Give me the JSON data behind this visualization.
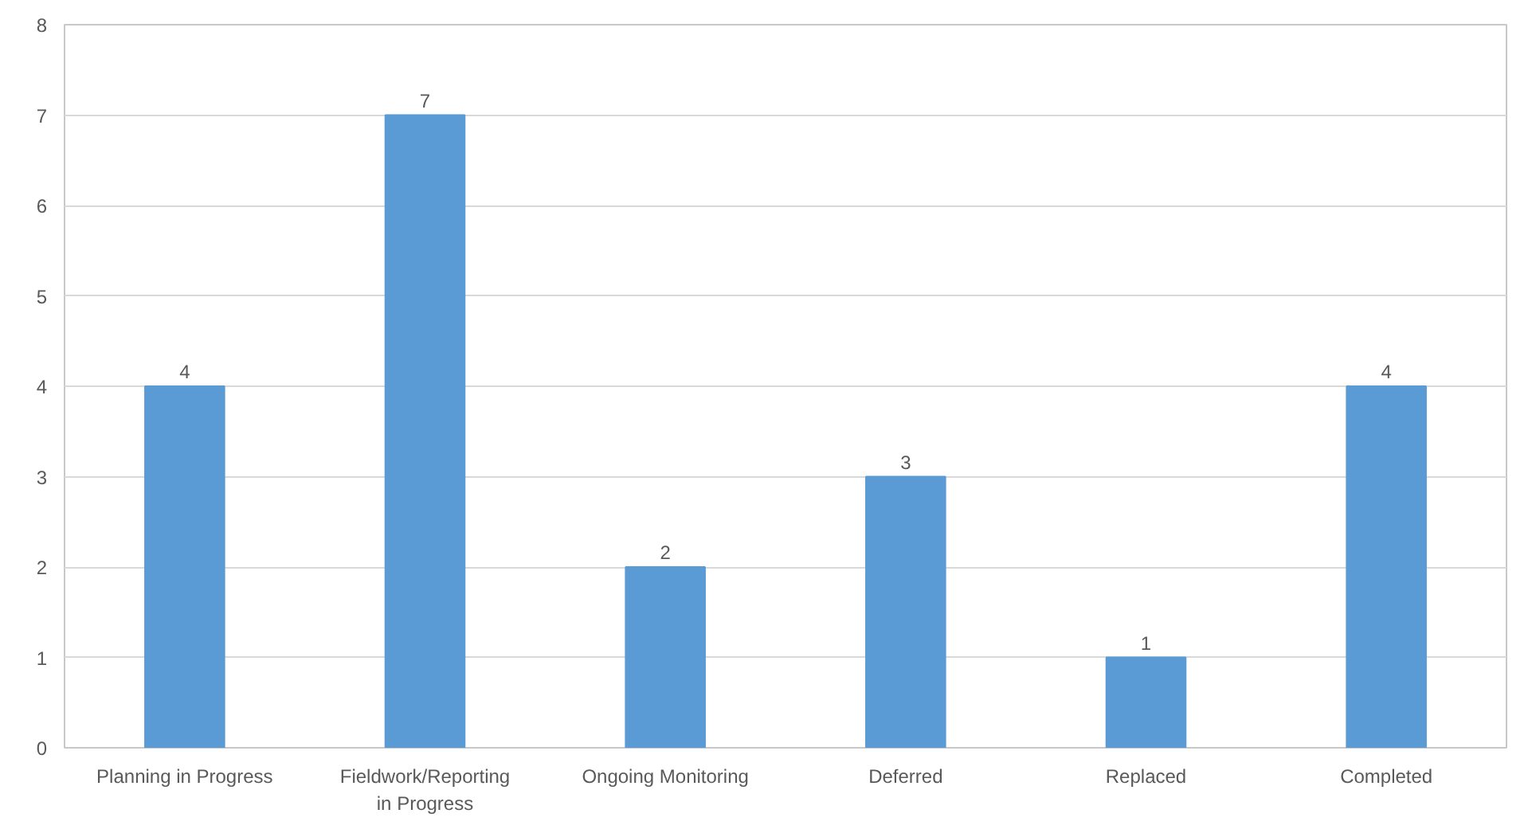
{
  "chart_data": {
    "type": "bar",
    "categories": [
      "Planning in Progress",
      "Fieldwork/Reporting in Progress",
      "Ongoing Monitoring",
      "Deferred",
      "Replaced",
      "Completed"
    ],
    "values": [
      4,
      7,
      2,
      3,
      1,
      4
    ],
    "color": "#5b9bd5",
    "ylim": [
      0,
      8
    ],
    "yticks": [
      0,
      1,
      2,
      3,
      4,
      5,
      6,
      7,
      8
    ],
    "grid": "y",
    "data_labels": true
  }
}
